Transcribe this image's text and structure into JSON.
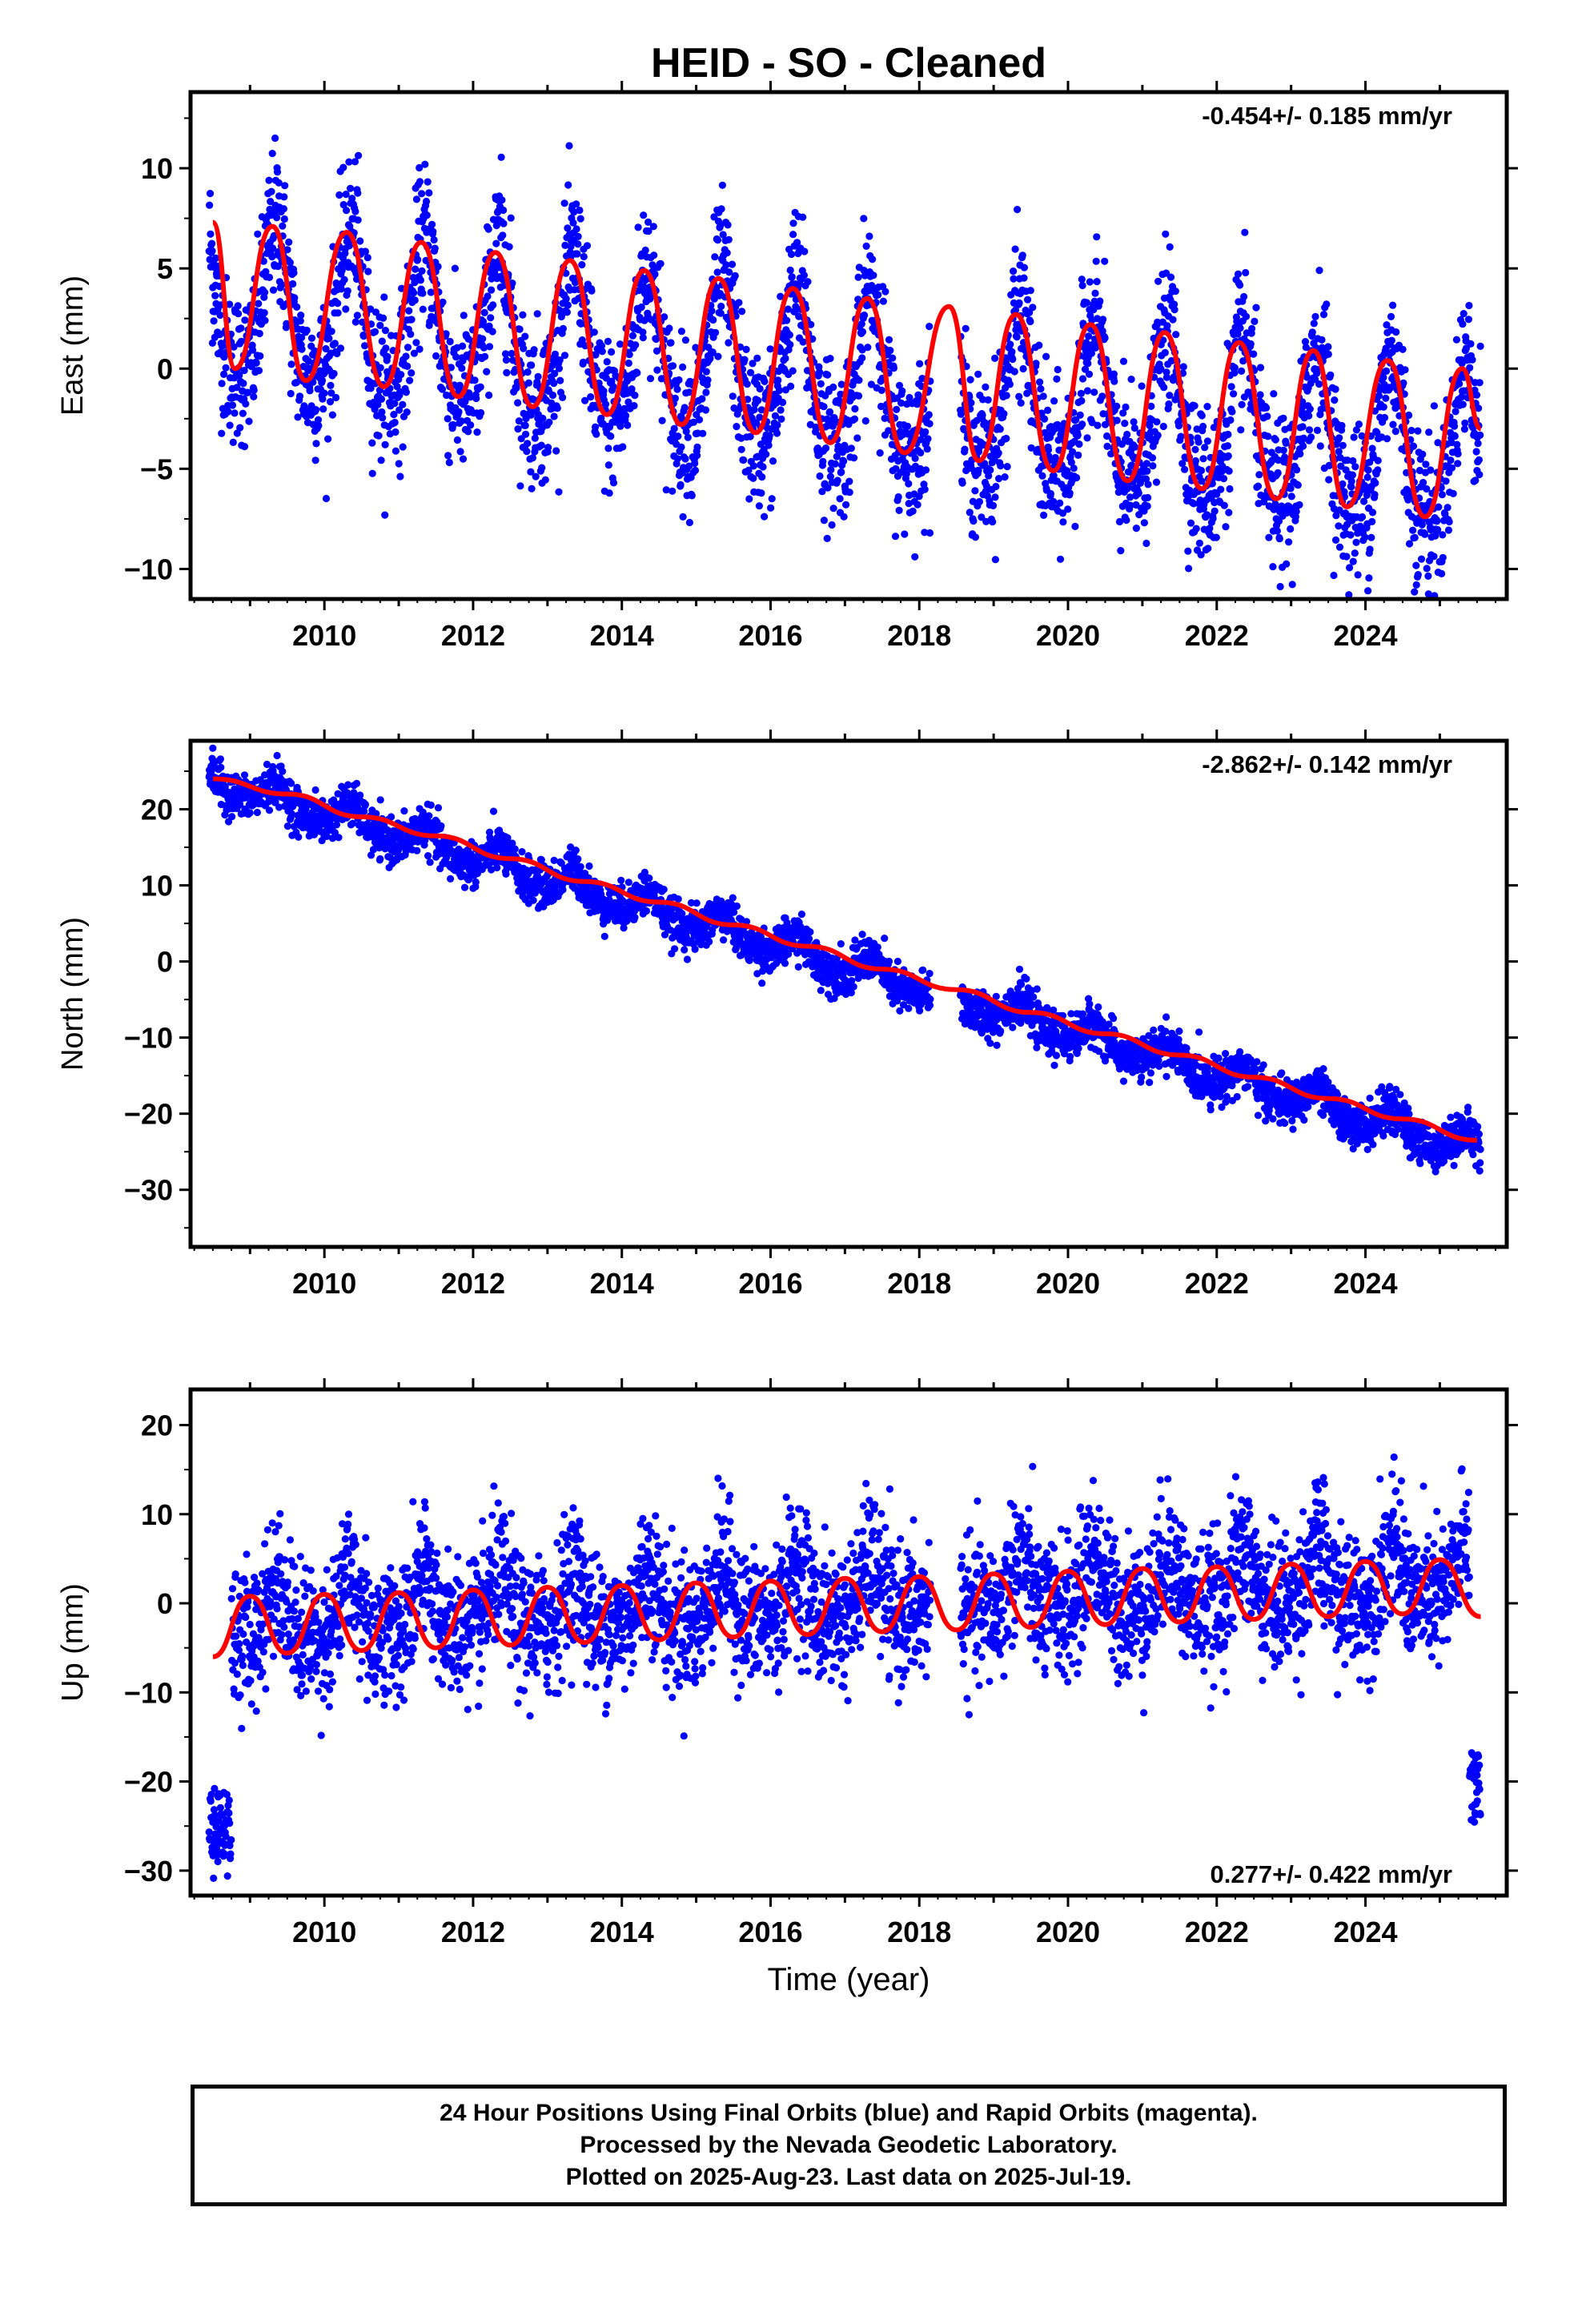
{
  "chart_data": {
    "type": "scatter",
    "title": "HEID  - SO - Cleaned",
    "xlabel": "Time (year)",
    "xlim": [
      2008.2,
      2025.9
    ],
    "xticks": [
      2010,
      2012,
      2014,
      2016,
      2018,
      2020,
      2022,
      2024
    ],
    "series_colors": {
      "points": "#0000ff",
      "fit": "#ff0000"
    },
    "data_gap": [
      2018.15,
      2018.55
    ],
    "panels": [
      {
        "id": "east",
        "ylabel": "East (mm)",
        "ylim": [
          -11.5,
          13.8
        ],
        "yticks": [
          -10,
          -5,
          0,
          5,
          10
        ],
        "rate": "-0.454+/- 0.185 mm/yr",
        "rate_position": "top-right",
        "fit": {
          "offset": 3.1,
          "trend_mm_per_yr": -0.454,
          "annual_amplitude": 3.8,
          "semiannual_amplitude": 0.9
        },
        "scatter_sigma": 1.9,
        "fit_points": [
          [
            2008.5,
            7.3
          ],
          [
            2008.8,
            0.0
          ],
          [
            2009.3,
            7.1
          ],
          [
            2009.75,
            -0.6
          ],
          [
            2010.3,
            6.8
          ],
          [
            2010.8,
            -0.9
          ],
          [
            2011.3,
            6.3
          ],
          [
            2011.8,
            -1.4
          ],
          [
            2012.3,
            5.8
          ],
          [
            2012.8,
            -1.9
          ],
          [
            2013.3,
            5.4
          ],
          [
            2013.8,
            -2.3
          ],
          [
            2014.3,
            4.9
          ],
          [
            2014.8,
            -2.8
          ],
          [
            2015.3,
            4.5
          ],
          [
            2015.8,
            -3.2
          ],
          [
            2016.3,
            4.0
          ],
          [
            2016.8,
            -3.7
          ],
          [
            2017.3,
            3.5
          ],
          [
            2017.8,
            -4.2
          ],
          [
            2018.4,
            3.1
          ],
          [
            2018.8,
            -4.6
          ],
          [
            2019.3,
            2.7
          ],
          [
            2019.8,
            -5.1
          ],
          [
            2020.3,
            2.2
          ],
          [
            2020.8,
            -5.6
          ],
          [
            2021.3,
            1.8
          ],
          [
            2021.8,
            -6.0
          ],
          [
            2022.3,
            1.3
          ],
          [
            2022.8,
            -6.5
          ],
          [
            2023.3,
            0.9
          ],
          [
            2023.75,
            -6.9
          ],
          [
            2024.3,
            0.4
          ],
          [
            2024.8,
            -7.4
          ],
          [
            2025.3,
            0.0
          ],
          [
            2025.55,
            -3.0
          ]
        ]
      },
      {
        "id": "north",
        "ylabel": "North (mm)",
        "ylim": [
          -37.5,
          29.0
        ],
        "yticks": [
          -30,
          -20,
          -10,
          0,
          10,
          20
        ],
        "rate": "-2.862+/- 0.142 mm/yr",
        "rate_position": "top-right",
        "fit": {
          "offset": 24.0,
          "trend_mm_per_yr": -2.862,
          "annual_amplitude": 1.6,
          "semiannual_amplitude": 0.4
        },
        "scatter_sigma": 1.4,
        "fit_points": [
          [
            2008.5,
            24.0
          ],
          [
            2009.5,
            22.0
          ],
          [
            2010.5,
            19.0
          ],
          [
            2011.5,
            16.5
          ],
          [
            2012.5,
            13.5
          ],
          [
            2013.5,
            10.5
          ],
          [
            2014.5,
            7.8
          ],
          [
            2015.5,
            4.8
          ],
          [
            2016.5,
            2.0
          ],
          [
            2017.5,
            -1.0
          ],
          [
            2018.5,
            -3.7
          ],
          [
            2019.5,
            -6.7
          ],
          [
            2020.5,
            -9.5
          ],
          [
            2021.5,
            -12.3
          ],
          [
            2022.5,
            -15.2
          ],
          [
            2023.5,
            -18.0
          ],
          [
            2024.5,
            -20.7
          ],
          [
            2025.5,
            -23.5
          ]
        ]
      },
      {
        "id": "up",
        "ylabel": "Up (mm)",
        "ylim": [
          -32.8,
          24.0
        ],
        "yticks": [
          -30,
          -20,
          -10,
          0,
          10,
          20
        ],
        "rate": "0.277+/- 0.422 mm/yr",
        "rate_position": "bottom-right",
        "fit": {
          "offset": -2.0,
          "trend_mm_per_yr": 0.277,
          "annual_amplitude": 3.0,
          "semiannual_amplitude": 1.2
        },
        "scatter_sigma": 3.8,
        "outliers": [
          [
            2008.55,
            -25.0
          ],
          [
            2025.45,
            -20.0
          ]
        ],
        "fit_points": [
          [
            2008.5,
            -6.0
          ],
          [
            2009.0,
            0.8
          ],
          [
            2009.5,
            -5.6
          ],
          [
            2010.0,
            1.0
          ],
          [
            2010.5,
            -5.3
          ],
          [
            2011.0,
            1.2
          ],
          [
            2011.5,
            -5.0
          ],
          [
            2012.0,
            1.5
          ],
          [
            2012.5,
            -4.7
          ],
          [
            2013.0,
            1.8
          ],
          [
            2013.5,
            -4.4
          ],
          [
            2014.0,
            2.0
          ],
          [
            2014.5,
            -4.1
          ],
          [
            2015.0,
            2.3
          ],
          [
            2015.5,
            -3.8
          ],
          [
            2016.0,
            2.5
          ],
          [
            2016.5,
            -3.5
          ],
          [
            2017.0,
            2.8
          ],
          [
            2017.5,
            -3.2
          ],
          [
            2018.0,
            3.0
          ],
          [
            2018.5,
            -3.0
          ],
          [
            2019.0,
            3.3
          ],
          [
            2019.5,
            -2.7
          ],
          [
            2020.0,
            3.6
          ],
          [
            2020.5,
            -2.4
          ],
          [
            2021.0,
            3.9
          ],
          [
            2021.5,
            -2.1
          ],
          [
            2022.0,
            4.1
          ],
          [
            2022.5,
            -1.8
          ],
          [
            2023.0,
            4.4
          ],
          [
            2023.5,
            -1.5
          ],
          [
            2024.0,
            4.7
          ],
          [
            2024.5,
            -1.2
          ],
          [
            2025.0,
            4.9
          ],
          [
            2025.55,
            -1.5
          ]
        ]
      }
    ]
  },
  "footer": {
    "line1": "24 Hour Positions Using Final Orbits (blue) and Rapid Orbits (magenta).",
    "line2": "Processed by the Nevada Geodetic Laboratory.",
    "line3": "Plotted on 2025-Aug-23. Last data on 2025-Jul-19."
  }
}
